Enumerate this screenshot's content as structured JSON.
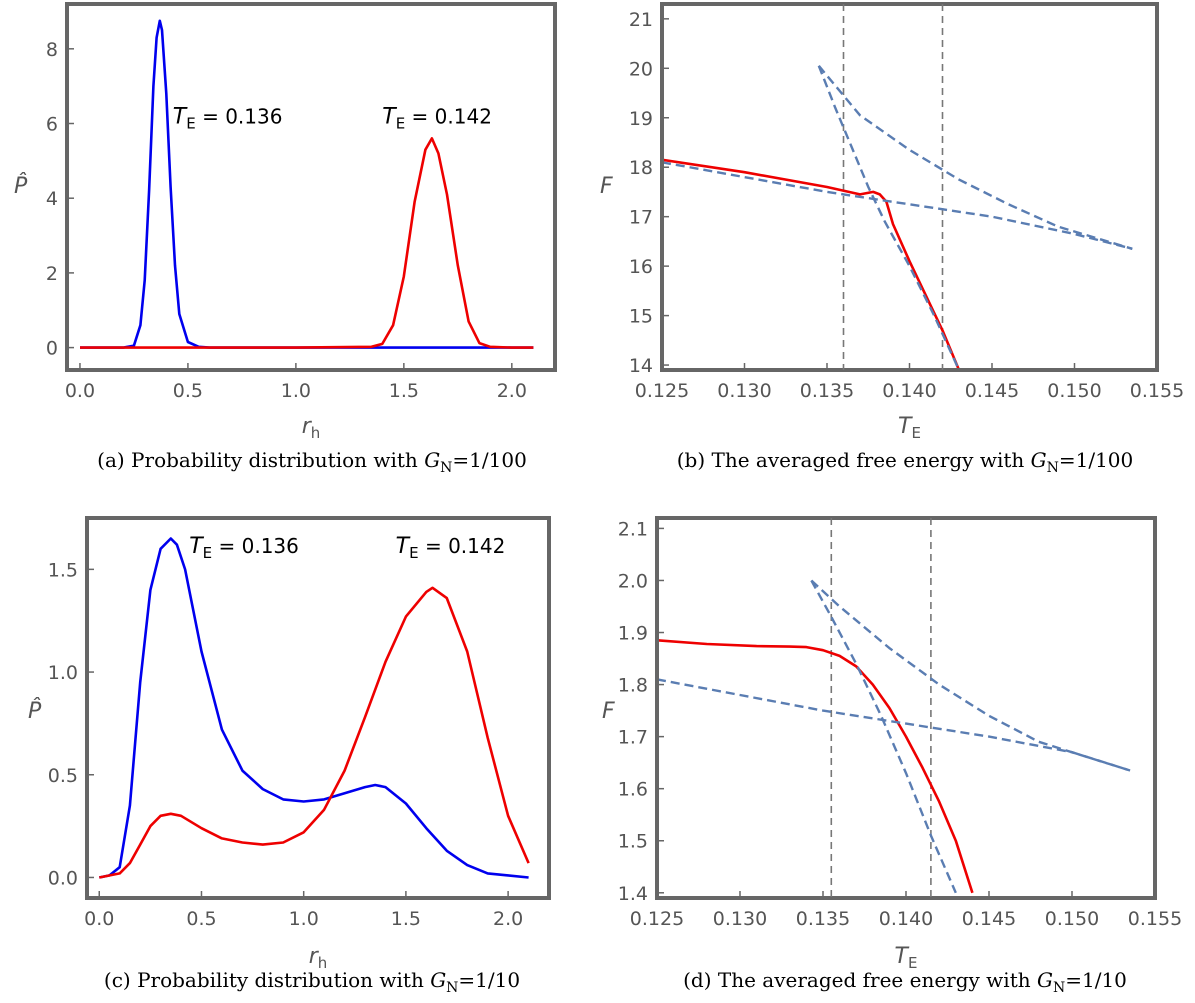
{
  "chart_data": [
    {
      "type": "line",
      "panel": "(a)",
      "caption": {
        "text": "(a) Probability distribution with ",
        "var": "G",
        "sub": "N",
        "eq": "=1/100"
      },
      "xlabel": {
        "main": "r",
        "sub": "h"
      },
      "ylabel": "P̂",
      "xlim": [
        -0.06,
        2.2
      ],
      "ylim": [
        -0.6,
        9.2
      ],
      "xticks": [
        "0.0",
        "0.5",
        "1.0",
        "1.5",
        "2.0"
      ],
      "xtick_values": [
        0,
        0.5,
        1,
        1.5,
        2
      ],
      "yticks": [
        "0",
        "2",
        "4",
        "6",
        "8"
      ],
      "ytick_values": [
        0,
        2,
        4,
        6,
        8
      ],
      "annotations": [
        {
          "main": "T",
          "sub": "E",
          "rest": " = 0.136",
          "x": 0.43,
          "y": 6.0
        },
        {
          "main": "T",
          "sub": "E",
          "rest": " = 0.142",
          "x": 1.4,
          "y": 6.0
        }
      ],
      "series": [
        {
          "color": "#0000ee",
          "dashed": false,
          "x": [
            0.0,
            0.2,
            0.25,
            0.28,
            0.3,
            0.32,
            0.34,
            0.355,
            0.37,
            0.38,
            0.4,
            0.42,
            0.44,
            0.46,
            0.5,
            0.55,
            0.6,
            1.0,
            1.5,
            2.0,
            2.1
          ],
          "y": [
            0.0,
            0.0,
            0.05,
            0.6,
            1.8,
            4.2,
            7.0,
            8.3,
            8.75,
            8.5,
            6.8,
            4.3,
            2.2,
            0.9,
            0.15,
            0.02,
            0.0,
            0.0,
            0.0,
            0.0,
            0.0
          ]
        },
        {
          "color": "#ee0000",
          "dashed": false,
          "x": [
            0.0,
            1.0,
            1.35,
            1.4,
            1.45,
            1.5,
            1.55,
            1.6,
            1.63,
            1.66,
            1.7,
            1.75,
            1.8,
            1.85,
            1.9,
            2.0,
            2.1
          ],
          "y": [
            0.0,
            0.0,
            0.02,
            0.1,
            0.6,
            1.9,
            3.9,
            5.3,
            5.6,
            5.2,
            4.1,
            2.2,
            0.7,
            0.12,
            0.02,
            0.0,
            0.0
          ]
        }
      ]
    },
    {
      "type": "line",
      "panel": "(b)",
      "caption": {
        "text": "(b) The averaged free energy with ",
        "var": "G",
        "sub": "N",
        "eq": "=1/100"
      },
      "xlabel": {
        "main": "T",
        "sub": "E"
      },
      "ylabel": "F",
      "xlim": [
        0.125,
        0.155
      ],
      "ylim": [
        13.9,
        21.3
      ],
      "xticks": [
        "0.125",
        "0.130",
        "0.135",
        "0.140",
        "0.145",
        "0.150",
        "0.155"
      ],
      "xtick_values": [
        0.125,
        0.13,
        0.135,
        0.14,
        0.145,
        0.15,
        0.155
      ],
      "yticks": [
        "14",
        "15",
        "16",
        "17",
        "18",
        "19",
        "20",
        "21"
      ],
      "ytick_values": [
        14,
        15,
        16,
        17,
        18,
        19,
        20,
        21
      ],
      "vlines": [
        0.136,
        0.142
      ],
      "series": [
        {
          "color": "#ee0000",
          "dashed": false,
          "x": [
            0.125,
            0.13,
            0.135,
            0.137,
            0.1378,
            0.1382,
            0.1386,
            0.139,
            0.14,
            0.141,
            0.142,
            0.143
          ],
          "y": [
            18.15,
            17.9,
            17.6,
            17.45,
            17.5,
            17.45,
            17.3,
            16.85,
            16.1,
            15.4,
            14.7,
            13.9
          ]
        },
        {
          "color": "#5a7db2",
          "dashed": true,
          "x": [
            0.125,
            0.13,
            0.135,
            0.138,
            0.14,
            0.145,
            0.15,
            0.1535
          ],
          "y": [
            18.1,
            17.8,
            17.5,
            17.35,
            17.25,
            17.0,
            16.65,
            16.35
          ]
        },
        {
          "color": "#5a7db2",
          "dashed": true,
          "x": [
            0.1345,
            0.1355,
            0.1365,
            0.1375,
            0.1385,
            0.14,
            0.1415,
            0.143
          ],
          "y": [
            20.05,
            19.2,
            18.4,
            17.6,
            16.9,
            16.0,
            15.0,
            13.9
          ]
        },
        {
          "color": "#5a7db2",
          "dashed": true,
          "x": [
            0.1345,
            0.137,
            0.14,
            0.143,
            0.146,
            0.149,
            0.152,
            0.1535
          ],
          "y": [
            20.05,
            19.05,
            18.35,
            17.75,
            17.25,
            16.8,
            16.5,
            16.35
          ]
        }
      ]
    },
    {
      "type": "line",
      "panel": "(c)",
      "caption": {
        "text": "(c) Probability distribution with ",
        "var": "G",
        "sub": "N",
        "eq": "=1/10"
      },
      "xlabel": {
        "main": "r",
        "sub": "h"
      },
      "ylabel": "P̂",
      "xlim": [
        -0.06,
        2.2
      ],
      "ylim": [
        -0.1,
        1.75
      ],
      "xticks": [
        "0.0",
        "0.5",
        "1.0",
        "1.5",
        "2.0"
      ],
      "xtick_values": [
        0,
        0.5,
        1,
        1.5,
        2
      ],
      "yticks": [
        "0.0",
        "0.5",
        "1.0",
        "1.5"
      ],
      "ytick_values": [
        0,
        0.5,
        1,
        1.5
      ],
      "annotations": [
        {
          "main": "T",
          "sub": "E",
          "rest": " = 0.136",
          "x": 0.44,
          "y": 1.58
        },
        {
          "main": "T",
          "sub": "E",
          "rest": " = 0.142",
          "x": 1.45,
          "y": 1.58
        }
      ],
      "series": [
        {
          "color": "#0000ee",
          "dashed": false,
          "x": [
            0.0,
            0.05,
            0.1,
            0.15,
            0.2,
            0.25,
            0.3,
            0.35,
            0.38,
            0.42,
            0.5,
            0.6,
            0.7,
            0.8,
            0.9,
            1.0,
            1.1,
            1.2,
            1.3,
            1.35,
            1.4,
            1.5,
            1.6,
            1.7,
            1.8,
            1.9,
            2.0,
            2.1
          ],
          "y": [
            0.0,
            0.01,
            0.05,
            0.35,
            0.95,
            1.4,
            1.6,
            1.65,
            1.62,
            1.5,
            1.1,
            0.72,
            0.52,
            0.43,
            0.38,
            0.37,
            0.38,
            0.41,
            0.44,
            0.45,
            0.44,
            0.36,
            0.24,
            0.13,
            0.06,
            0.02,
            0.01,
            0.0
          ]
        },
        {
          "color": "#ee0000",
          "dashed": false,
          "x": [
            0.0,
            0.1,
            0.15,
            0.2,
            0.25,
            0.3,
            0.35,
            0.4,
            0.5,
            0.6,
            0.7,
            0.8,
            0.9,
            1.0,
            1.1,
            1.2,
            1.3,
            1.4,
            1.5,
            1.6,
            1.63,
            1.7,
            1.8,
            1.9,
            2.0,
            2.1
          ],
          "y": [
            0.0,
            0.02,
            0.07,
            0.16,
            0.25,
            0.3,
            0.31,
            0.3,
            0.24,
            0.19,
            0.17,
            0.16,
            0.17,
            0.22,
            0.33,
            0.52,
            0.78,
            1.05,
            1.27,
            1.39,
            1.41,
            1.36,
            1.1,
            0.68,
            0.3,
            0.07
          ]
        }
      ]
    },
    {
      "type": "line",
      "panel": "(d)",
      "caption": {
        "text": "(d) The averaged free energy with ",
        "var": "G",
        "sub": "N",
        "eq": "=1/10"
      },
      "xlabel": {
        "main": "T",
        "sub": "E"
      },
      "ylabel": "F",
      "xlim": [
        0.125,
        0.155
      ],
      "ylim": [
        1.39,
        2.12
      ],
      "xticks": [
        "0.125",
        "0.130",
        "0.135",
        "0.140",
        "0.145",
        "0.150",
        "0.155"
      ],
      "xtick_values": [
        0.125,
        0.13,
        0.135,
        0.14,
        0.145,
        0.15,
        0.155
      ],
      "yticks": [
        "1.4",
        "1.5",
        "1.6",
        "1.7",
        "1.8",
        "1.9",
        "2.0",
        "2.1"
      ],
      "ytick_values": [
        1.4,
        1.5,
        1.6,
        1.7,
        1.8,
        1.9,
        2.0,
        2.1
      ],
      "vlines": [
        0.1355,
        0.1415
      ],
      "series": [
        {
          "color": "#ee0000",
          "dashed": false,
          "x": [
            0.125,
            0.128,
            0.131,
            0.133,
            0.134,
            0.135,
            0.136,
            0.137,
            0.138,
            0.139,
            0.14,
            0.141,
            0.142,
            0.143,
            0.144
          ],
          "y": [
            1.885,
            1.878,
            1.874,
            1.873,
            1.872,
            1.866,
            1.855,
            1.835,
            1.8,
            1.755,
            1.7,
            1.64,
            1.575,
            1.5,
            1.4
          ]
        },
        {
          "color": "#5a7db2",
          "dashed": true,
          "x": [
            0.125,
            0.13,
            0.135,
            0.14,
            0.145,
            0.15,
            0.1535
          ],
          "y": [
            1.81,
            1.78,
            1.75,
            1.725,
            1.7,
            1.67,
            1.635
          ]
        },
        {
          "color": "#5a7db2",
          "dashed": true,
          "x": [
            0.1343,
            0.1355,
            0.137,
            0.1385,
            0.14,
            0.1415,
            0.143
          ],
          "y": [
            2.0,
            1.93,
            1.84,
            1.74,
            1.63,
            1.51,
            1.4
          ]
        },
        {
          "color": "#5a7db2",
          "dashed": true,
          "x": [
            0.1343,
            0.136,
            0.139,
            0.142,
            0.145,
            0.148,
            0.151,
            0.1535
          ],
          "y": [
            2.0,
            1.95,
            1.87,
            1.8,
            1.74,
            1.69,
            1.66,
            1.635
          ]
        }
      ]
    }
  ]
}
